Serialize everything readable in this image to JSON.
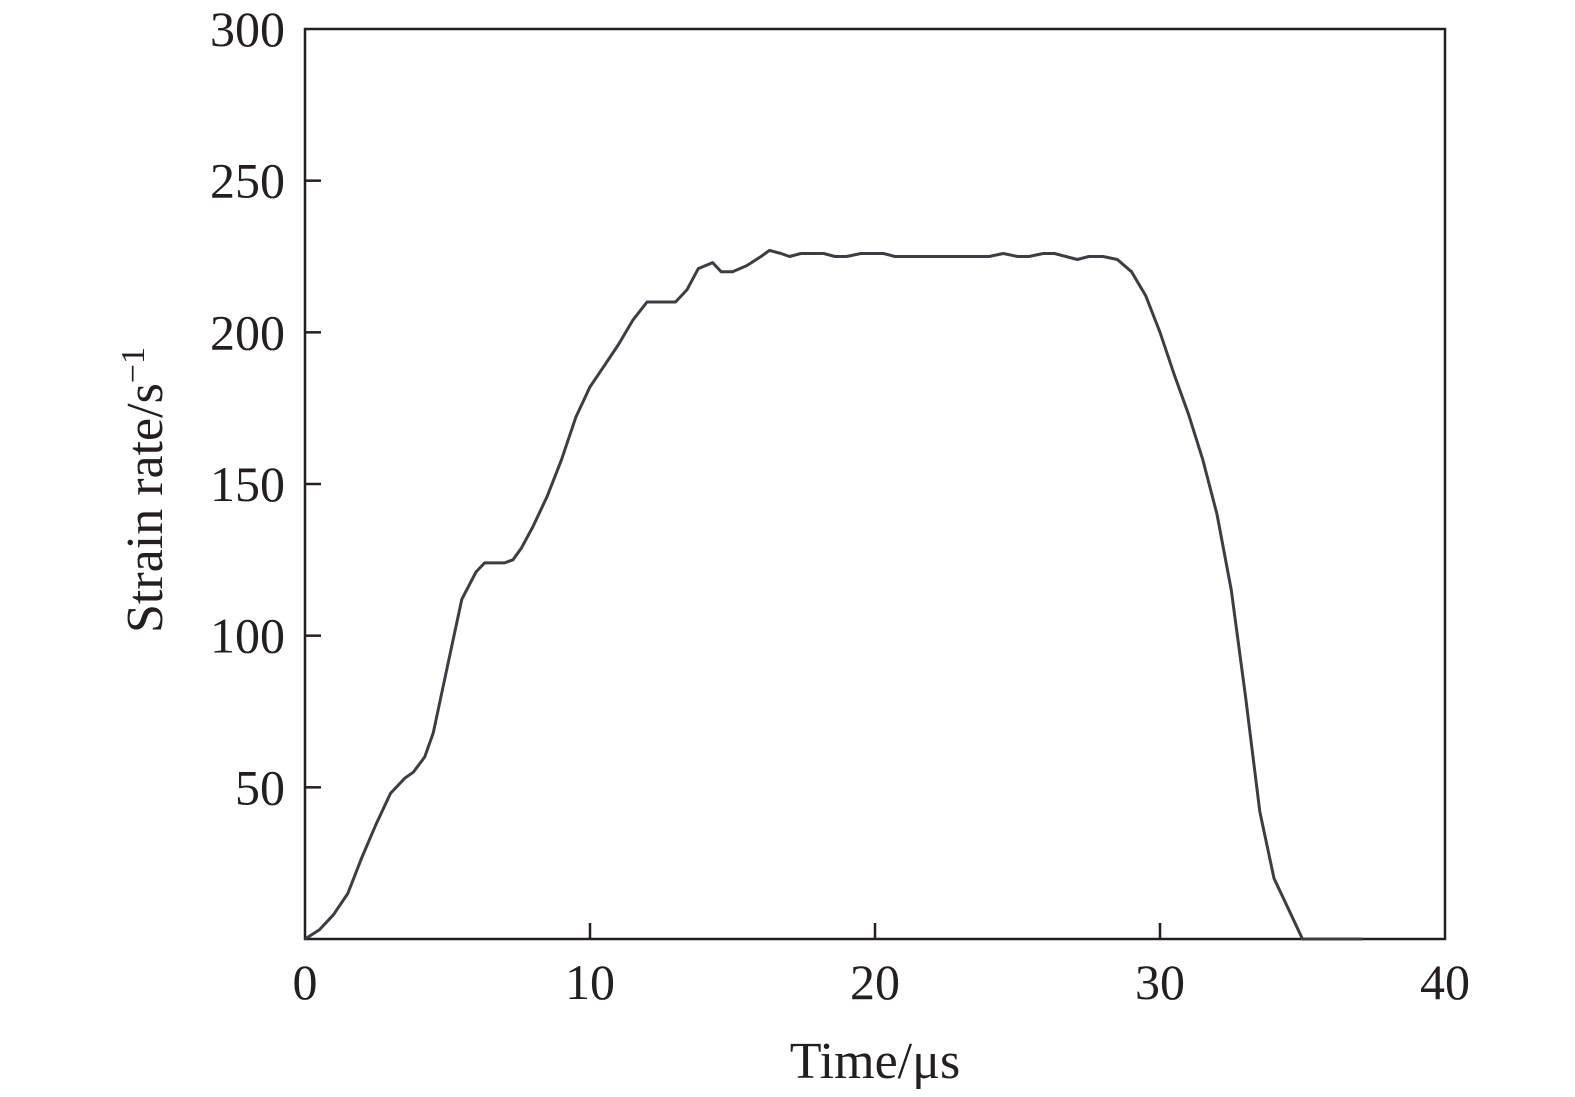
{
  "chart_data": {
    "type": "line",
    "title": "",
    "xlabel": "Time/μs",
    "ylabel_main": "Strain rate/s",
    "ylabel_superscript": "−1",
    "xlim": [
      0,
      40
    ],
    "ylim": [
      0,
      300
    ],
    "x_ticks": [
      0,
      10,
      20,
      30,
      40
    ],
    "x_tick_labels": [
      "0",
      "10",
      "20",
      "30",
      "40"
    ],
    "y_ticks": [
      50,
      100,
      150,
      200,
      250,
      300
    ],
    "y_tick_labels": [
      "50",
      "100",
      "150",
      "200",
      "250",
      "300"
    ],
    "grid": false,
    "legend": "none",
    "line_color": "#3d3d44",
    "series": [
      {
        "x": [
          0,
          0.5,
          1.0,
          1.5,
          2.0,
          2.5,
          3.0,
          3.5,
          3.8,
          4.2,
          4.5,
          5.0,
          5.5,
          6.0,
          6.3,
          6.6,
          7.0,
          7.3,
          7.6,
          8.0,
          8.5,
          9.0,
          9.5,
          10.0,
          10.5,
          11.0,
          11.5,
          12.0,
          12.3,
          13.0,
          13.4,
          13.8,
          14.3,
          14.6,
          15.0,
          15.5,
          16.0,
          16.3,
          16.7,
          17.0,
          17.4,
          17.8,
          18.2,
          18.6,
          19.0,
          19.5,
          20.0,
          20.3,
          20.7,
          21.0,
          22.0,
          23.0,
          24.0,
          24.5,
          25.0,
          25.4,
          25.9,
          26.3,
          26.7,
          27.1,
          27.5,
          28.0,
          28.5,
          29.0,
          29.5,
          30.0,
          30.5,
          31.0,
          31.5,
          32.0,
          32.5,
          33.0,
          33.5,
          34.0,
          34.5,
          35.0,
          35.5,
          36.0,
          36.5,
          37.1
        ],
        "y": [
          0,
          3,
          8,
          15,
          27,
          38,
          48,
          53,
          55,
          60,
          68,
          90,
          112,
          121,
          124,
          124,
          124,
          125,
          129,
          136,
          146,
          158,
          172,
          182,
          189,
          196,
          204,
          210,
          210,
          210,
          214,
          221,
          223,
          220,
          220,
          222,
          225,
          227,
          226,
          225,
          226,
          226,
          226,
          225,
          225,
          226,
          226,
          226,
          225,
          225,
          225,
          225,
          225,
          226,
          225,
          225,
          226,
          226,
          225,
          224,
          225,
          225,
          224,
          220,
          212,
          200,
          186,
          173,
          158,
          140,
          115,
          80,
          42,
          20,
          10,
          0,
          0,
          0,
          0,
          0
        ]
      }
    ]
  }
}
